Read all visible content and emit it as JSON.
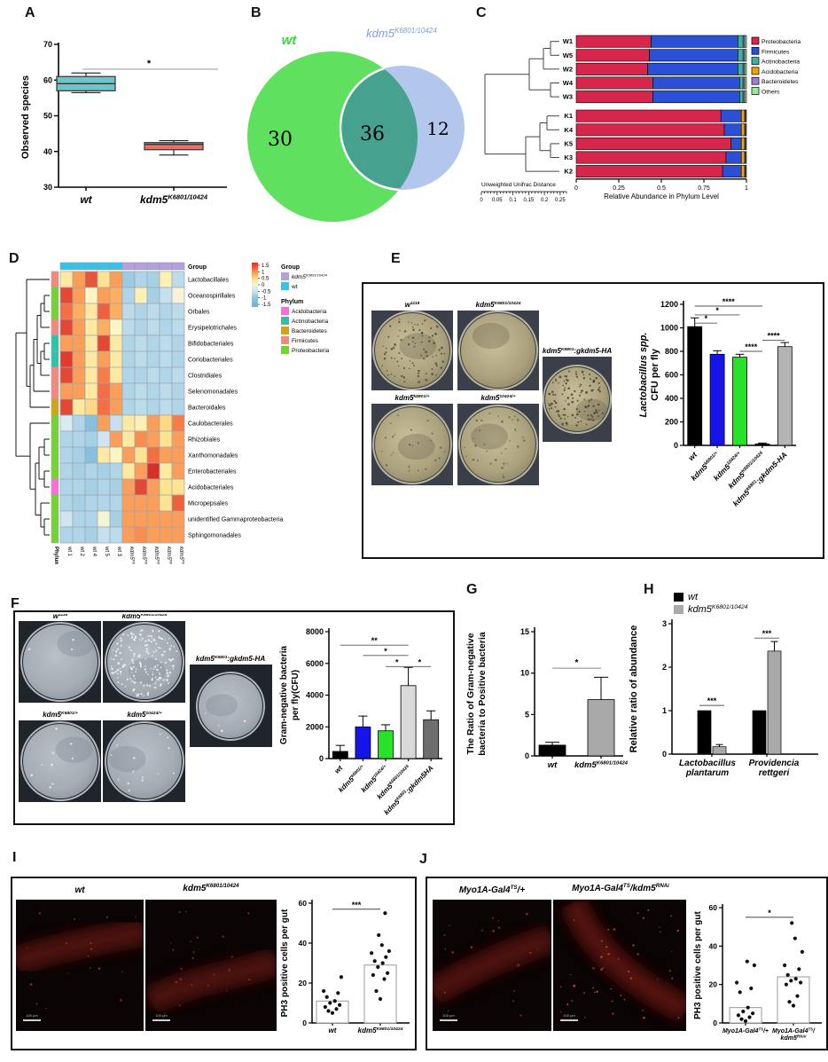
{
  "panels": {
    "A": {
      "letter": "A"
    },
    "B": {
      "letter": "B"
    },
    "C": {
      "letter": "C"
    },
    "D": {
      "letter": "D",
      "header_group_label": "Group",
      "legend_group_title": "Group",
      "legend_phylum_title": "Phylum",
      "legend_groups": [
        {
          "label": "kdm5^{K6801/10424}",
          "color": "#b3a0dc"
        },
        {
          "label": "wt",
          "color": "#35c3ea"
        }
      ],
      "legend_phyla": [
        {
          "label": "Acidobacteria",
          "color": "#f76fd9"
        },
        {
          "label": "Actinobacteria",
          "color": "#2cc4a8"
        },
        {
          "label": "Bacteroidetes",
          "color": "#d2a517"
        },
        {
          "label": "Firmicutes",
          "color": "#f4887e"
        },
        {
          "label": "Proteobacteria",
          "color": "#74d42f"
        }
      ]
    },
    "E": {
      "letter": "E",
      "plates": [
        {
          "label": "w^{1118}"
        },
        {
          "label": "kdm5^{K6801/10424}"
        },
        {
          "label": "kdm5^{K6801}:gkdm5-HA"
        },
        {
          "label": "kdm5^{k6801/+}"
        },
        {
          "label": "kdm5^{10424/+}"
        }
      ]
    },
    "F": {
      "letter": "F",
      "plates": [
        {
          "label": "w^{1118}"
        },
        {
          "label": "kdm5^{K6801/10424}"
        },
        {
          "label": "kdm5^{K6801}:gkdm5-HA"
        },
        {
          "label": "kdm5^{K6801/+}"
        },
        {
          "label": "kdm5^{10424/+}"
        }
      ]
    },
    "G": {
      "letter": "G"
    },
    "H": {
      "letter": "H"
    },
    "I": {
      "letter": "I",
      "images": [
        {
          "label": "wt",
          "scale_bar": "100 μm"
        },
        {
          "label": "kdm5^{K6801/10424}",
          "scale_bar": "100 μm"
        }
      ]
    },
    "J": {
      "letter": "J",
      "images": [
        {
          "label": "Myo1A-Gal4^{TS}/+",
          "scale_bar": "100 μm"
        },
        {
          "label": "Myo1A-Gal4^{TS}/kdm5^{RNAi}",
          "scale_bar": "100 μm"
        }
      ]
    }
  },
  "chart_data": [
    {
      "id": "A",
      "type": "box",
      "ylabel": "Observed species",
      "ylim": [
        30,
        70
      ],
      "yticks": [
        30,
        40,
        50,
        60,
        70
      ],
      "groups": [
        {
          "label": "wt",
          "color": "#6cc5c9",
          "q1": 57,
          "median": 59,
          "q3": 61,
          "whisker_low": 56.5,
          "whisker_high": 62
        },
        {
          "label": "kdm5^{K6801/10424}",
          "color": "#ec7063",
          "q1": 40.5,
          "median": 42,
          "q3": 42.5,
          "whisker_low": 39,
          "whisker_high": 43
        }
      ],
      "significance": "*"
    },
    {
      "id": "B",
      "type": "venn",
      "sets": [
        {
          "label": "wt",
          "unique": 30,
          "color": "#5fe05f",
          "label_color": "#3fd43f"
        },
        {
          "label": "kdm5^{K6801/10424}",
          "unique": 12,
          "color": "#b3c7ed",
          "label_color": "#7b9fe0"
        }
      ],
      "overlap": 36,
      "overlap_color": "#46a18e"
    },
    {
      "id": "C",
      "type": "stacked-bar-h",
      "xlabel": "Relative Abundance in Phylum Level",
      "xticks": [
        0,
        0.25,
        0.5,
        0.75,
        1
      ],
      "scale_label": "Unweighted Unifrac Distance",
      "scale_ticks": [
        0,
        0.05,
        0.1,
        0.15,
        0.2,
        0.25
      ],
      "legend": [
        "Proteobacteria",
        "Firmicutes",
        "Actinobacteria",
        "Acidobacteria",
        "Bacteroidetes",
        "Others"
      ],
      "colors": [
        "#d6264c",
        "#2b50d8",
        "#35b5a8",
        "#f0a500",
        "#9b7fd4",
        "#90ee90"
      ],
      "samples": [
        "W1",
        "W5",
        "W2",
        "W4",
        "W3",
        "K1",
        "K4",
        "K5",
        "K3",
        "K2"
      ],
      "values": [
        [
          0.44,
          0.51,
          0.03,
          0,
          0.01,
          0.01
        ],
        [
          0.43,
          0.52,
          0.03,
          0,
          0.01,
          0.01
        ],
        [
          0.42,
          0.53,
          0.03,
          0,
          0.01,
          0.01
        ],
        [
          0.45,
          0.51,
          0.02,
          0,
          0.01,
          0.01
        ],
        [
          0.45,
          0.51,
          0.02,
          0,
          0.01,
          0.01
        ],
        [
          0.85,
          0.12,
          0,
          0.02,
          0.005,
          0.005
        ],
        [
          0.87,
          0.1,
          0,
          0.02,
          0.005,
          0.005
        ],
        [
          0.91,
          0.06,
          0,
          0.02,
          0.005,
          0.005
        ],
        [
          0.88,
          0.09,
          0,
          0.02,
          0.005,
          0.005
        ],
        [
          0.86,
          0.11,
          0,
          0.02,
          0.005,
          0.005
        ]
      ]
    },
    {
      "id": "D",
      "type": "heatmap",
      "scale_ticks": [
        1.5,
        1,
        0.5,
        0,
        -0.5,
        -1,
        -1.5
      ],
      "cols": [
        "wt 1",
        "wt 2",
        "wt 4",
        "wt 5",
        "wt 3",
        "kdm5^{K6801/10424} 1",
        "kdm5^{K6801/10424} 2",
        "kdm5^{K6801/10424} 4",
        "kdm5^{K6801/10424} 5",
        "kdm5^{K6801/10424} 3"
      ],
      "col_groups": [
        "wt",
        "wt",
        "wt",
        "wt",
        "wt",
        "kdm5",
        "kdm5",
        "kdm5",
        "kdm5",
        "kdm5"
      ],
      "phylum_axis_label": "Phylum",
      "rows": [
        "Lactobacillales",
        "Oceanospirillales",
        "Orbales",
        "Erysipelotrichales",
        "Bifidobacteriales",
        "Coriobacteriales",
        "Clostridiales",
        "Selenomonadales",
        "Bacteroidales",
        "Caulobacterales",
        "Rhizobiales",
        "Xanthomonadales",
        "Enterobacteriales",
        "Acidobacteriales",
        "Micropepsales",
        "unidentified Gammaproteobacteria",
        "Sphingomonadales"
      ],
      "row_phylum": [
        "Firmicutes",
        "Proteobacteria",
        "Proteobacteria",
        "Firmicutes",
        "Actinobacteria",
        "Actinobacteria",
        "Firmicutes",
        "Firmicutes",
        "Bacteroidetes",
        "Proteobacteria",
        "Proteobacteria",
        "Proteobacteria",
        "Proteobacteria",
        "Acidobacteria",
        "Proteobacteria",
        "Proteobacteria",
        "Proteobacteria"
      ],
      "values": [
        [
          0.3,
          0.9,
          1.4,
          0.4,
          0.9,
          -0.9,
          -0.7,
          -0.8,
          0.2,
          -0.6
        ],
        [
          1.5,
          0.9,
          0.1,
          0.9,
          0.8,
          -0.7,
          0.2,
          -0.8,
          -0.5,
          0.0
        ],
        [
          1.2,
          0.8,
          0.3,
          1.3,
          0.8,
          -0.6,
          -0.7,
          -0.6,
          -0.7,
          -0.6
        ],
        [
          1.5,
          0.9,
          0.3,
          0.8,
          0.1,
          -0.6,
          -0.7,
          -0.6,
          -0.7,
          -0.6
        ],
        [
          0.9,
          0.9,
          0.3,
          1.5,
          0.3,
          -0.7,
          -0.6,
          -0.7,
          -0.6,
          -0.7
        ],
        [
          1.6,
          0.9,
          0.3,
          0.9,
          0.3,
          -0.7,
          -0.6,
          -0.7,
          -0.6,
          -0.7
        ],
        [
          1.5,
          0.9,
          0.3,
          1.1,
          0.3,
          -0.7,
          -0.7,
          -0.6,
          -0.7,
          -0.6
        ],
        [
          0.9,
          0.9,
          0.3,
          1.2,
          0.9,
          -0.7,
          -0.6,
          -0.7,
          -0.6,
          -0.7
        ],
        [
          1.5,
          0.3,
          0.5,
          1.2,
          0.9,
          -0.7,
          -0.6,
          -0.7,
          -0.6,
          -0.7
        ],
        [
          -0.3,
          -0.7,
          -1.2,
          0.9,
          -0.5,
          0.3,
          0.2,
          0.9,
          0.5,
          1.1
        ],
        [
          -0.7,
          -0.7,
          -0.8,
          -0.4,
          0.9,
          0.3,
          1.0,
          0.9,
          0.4,
          0.9
        ],
        [
          -0.7,
          -0.8,
          -1.2,
          0.3,
          0.1,
          0.9,
          0.4,
          1.2,
          0.9,
          0.9
        ],
        [
          -0.7,
          -0.8,
          -0.7,
          -0.8,
          -0.7,
          0.3,
          0.9,
          1.7,
          0.3,
          0.9
        ],
        [
          -0.7,
          -0.7,
          -0.8,
          -0.7,
          -0.8,
          0.9,
          1.5,
          0.9,
          0.4,
          0.4
        ],
        [
          -0.7,
          -0.8,
          -0.7,
          -0.7,
          -0.7,
          0.9,
          0.9,
          0.9,
          0.4,
          1.3
        ],
        [
          -0.4,
          -0.7,
          -0.7,
          0.0,
          -0.8,
          0.9,
          0.9,
          0.9,
          0.9,
          0.9
        ],
        [
          -0.7,
          -0.7,
          -0.8,
          -0.5,
          -0.6,
          0.9,
          1.0,
          0.9,
          0.9,
          0.9
        ]
      ]
    },
    {
      "id": "E",
      "type": "bar",
      "ylabel_line1": "Lactobacillus spp.",
      "ylabel_line2": "CFU per fly",
      "ylim": [
        0,
        1200
      ],
      "yticks": [
        0,
        200,
        400,
        600,
        800,
        1000,
        1200
      ],
      "categories": [
        "wt",
        "kdm5^{k6801/+}",
        "kdm5^{10424/+}",
        "kdm5^{K6801/10424}",
        "kdm5^{k6801};gkdm5-HA"
      ],
      "values": [
        1010,
        775,
        750,
        12,
        840
      ],
      "errors": [
        75,
        30,
        25,
        8,
        35
      ],
      "bar_colors": [
        "#000000",
        "#1515e8",
        "#27e227",
        "#000000",
        "#b4b4b4"
      ],
      "sig": [
        {
          "a": 0,
          "b": 3,
          "v": 1185,
          "label": "****"
        },
        {
          "a": 0,
          "b": 2,
          "v": 1110,
          "label": "*"
        },
        {
          "a": 0,
          "b": 1,
          "v": 1040,
          "label": "*"
        },
        {
          "a": 3,
          "b": 4,
          "v": 895,
          "label": "****"
        },
        {
          "a": 2,
          "b": 3,
          "v": 800,
          "label": "****"
        }
      ]
    },
    {
      "id": "F",
      "type": "bar",
      "ylabel_line1": "Gram-negative bacteria",
      "ylabel_line2": "per fly(CFU)",
      "ylim": [
        0,
        8000
      ],
      "yticks": [
        0,
        2000,
        4000,
        6000,
        8000
      ],
      "categories": [
        "wt",
        "kdm5^{k6801/+}",
        "kdm5^{10424/+}",
        "kdm5^{k6801/10424}",
        "kdm5^{k6801};gkdm5HA"
      ],
      "values": [
        450,
        2000,
        1750,
        4600,
        2450
      ],
      "errors": [
        380,
        680,
        380,
        1150,
        560
      ],
      "bar_colors": [
        "#000000",
        "#1515e8",
        "#27e227",
        "#d9d9d9",
        "#6e6e6e"
      ],
      "sig": [
        {
          "a": 0,
          "b": 3,
          "v": 7150,
          "label": "**"
        },
        {
          "a": 1,
          "b": 3,
          "v": 6500,
          "label": "*"
        },
        {
          "a": 2,
          "b": 3,
          "v": 5800,
          "label": "*"
        },
        {
          "a": 3,
          "b": 4,
          "v": 5800,
          "label": "*"
        }
      ]
    },
    {
      "id": "G",
      "type": "bar",
      "ylabel_line1": "The Ratio of Gram-negative",
      "ylabel_line2": "bacteria to Positive bacteria",
      "ylim": [
        0,
        15
      ],
      "yticks": [
        0,
        5,
        10,
        15
      ],
      "categories": [
        "wt",
        "kdm5^{K6801/10424}"
      ],
      "values": [
        1.3,
        6.8
      ],
      "errors": [
        0.35,
        2.7
      ],
      "bar_colors": [
        "#000000",
        "#a9a9a9"
      ],
      "sig": [
        {
          "a": 0,
          "b": 1,
          "v": 10.6,
          "label": "*"
        }
      ]
    },
    {
      "id": "H",
      "type": "grouped-bar",
      "ylabel": "Relative ratio of abundance",
      "ylim": [
        0,
        3
      ],
      "yticks": [
        0,
        1,
        2,
        3
      ],
      "categories": [
        [
          "Lactobacillus",
          "plantarum"
        ],
        [
          "Providencia",
          "rettgeri"
        ]
      ],
      "series": [
        {
          "name": "wt",
          "color": "#000000",
          "values": [
            1.0,
            1.0
          ],
          "errors": [
            0,
            0
          ]
        },
        {
          "name": "kdm5^{K6801/10424}",
          "color": "#a9a9a9",
          "values": [
            0.17,
            2.37
          ],
          "errors": [
            0.05,
            0.22
          ]
        }
      ],
      "sig": [
        {
          "group": 0,
          "v": 1.12,
          "label": "***"
        },
        {
          "group": 1,
          "v": 2.67,
          "label": "***"
        }
      ]
    },
    {
      "id": "I",
      "type": "scatter-bar",
      "ylabel": "PH3 positive cells per gut",
      "ylim": [
        0,
        60
      ],
      "yticks": [
        0,
        20,
        40,
        60
      ],
      "categories": [
        "wt",
        "kdm5^{K6801/10424}"
      ],
      "bar_values": [
        11,
        29
      ],
      "points": [
        [
          5,
          6,
          7,
          8,
          9,
          10,
          11,
          13,
          15,
          16,
          23
        ],
        [
          12,
          16,
          22,
          24,
          25,
          28,
          30,
          31,
          33,
          35,
          36,
          39,
          44,
          55
        ]
      ],
      "sig": {
        "v": 57,
        "label": "***"
      }
    },
    {
      "id": "J",
      "type": "scatter-bar",
      "ylabel": "PH3 positive cells per gut",
      "ylim": [
        0,
        60
      ],
      "yticks": [
        0,
        20,
        40,
        60
      ],
      "categories": [
        [
          "Myo1A-Gal4^{TS}/+"
        ],
        [
          "Myo1A-Gal4^{TS}/",
          "kdm5^{RNAi}"
        ]
      ],
      "bar_values": [
        8,
        24
      ],
      "points": [
        [
          1,
          2,
          3,
          4,
          5,
          6,
          8,
          16,
          18,
          21,
          30,
          32
        ],
        [
          9,
          11,
          14,
          20,
          21,
          22,
          23,
          25,
          28,
          30,
          37,
          44,
          52
        ]
      ],
      "sig": {
        "v": 55,
        "label": "*"
      }
    }
  ]
}
